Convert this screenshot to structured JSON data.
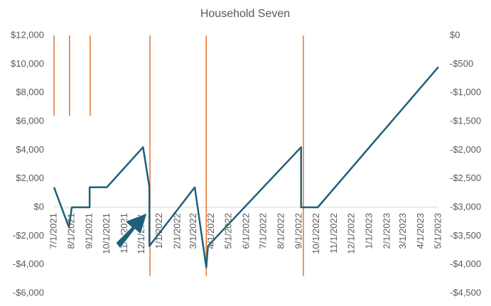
{
  "chart_data": {
    "type": "line",
    "title": "Household Seven",
    "xlim": [
      "7/1/2021",
      "5/1/2023"
    ],
    "xticks": [
      "7/1/2021",
      "8/1/2021",
      "9/1/2021",
      "10/1/2021",
      "11/1/2021",
      "12/1/2021",
      "1/1/2022",
      "2/1/2022",
      "3/1/2022",
      "4/1/2022",
      "5/1/2022",
      "6/1/2022",
      "7/1/2022",
      "8/1/2022",
      "9/1/2022",
      "10/1/2022",
      "11/1/2022",
      "12/1/2022",
      "1/1/2023",
      "2/1/2023",
      "3/1/2023",
      "4/1/2023",
      "5/1/2023"
    ],
    "ylim": [
      -6000,
      12000
    ],
    "yticks": [
      {
        "value": 12000,
        "label": "$12,000"
      },
      {
        "value": 10000,
        "label": "$10,000"
      },
      {
        "value": 8000,
        "label": "$8,000"
      },
      {
        "value": 6000,
        "label": "$6,000"
      },
      {
        "value": 4000,
        "label": "$4,000"
      },
      {
        "value": 2000,
        "label": "$2,000"
      },
      {
        "value": 0,
        "label": "$0"
      },
      {
        "value": -2000,
        "label": "-$2,000"
      },
      {
        "value": -4000,
        "label": "-$4,000"
      },
      {
        "value": -6000,
        "label": "-$6,000"
      }
    ],
    "y2lim": [
      -4500,
      0
    ],
    "y2ticks": [
      {
        "value": 0,
        "label": "$0"
      },
      {
        "value": -500,
        "label": "-$500"
      },
      {
        "value": -1000,
        "label": "-$1,000"
      },
      {
        "value": -1500,
        "label": "-$1,500"
      },
      {
        "value": -2000,
        "label": "-$2,000"
      },
      {
        "value": -2500,
        "label": "-$2,500"
      },
      {
        "value": -3000,
        "label": "-$3,000"
      },
      {
        "value": -3500,
        "label": "-$3,500"
      },
      {
        "value": -4000,
        "label": "-$4,000"
      },
      {
        "value": -4500,
        "label": "-$4,500"
      }
    ],
    "series": [
      {
        "type": "line",
        "color": "#1f6079",
        "x": [
          "7/1/2021",
          "7/27/2021",
          "8/1/2021",
          "9/1/2021",
          "9/1/2021",
          "10/1/2021",
          "12/3/2021",
          "12/14/2021",
          "12/14/2021",
          "3/3/2022",
          "3/23/2022",
          "3/26/2022",
          "9/4/2022",
          "9/4/2022",
          "10/3/2022",
          "5/1/2023"
        ],
        "values": [
          1400,
          -1400,
          0,
          0,
          1400,
          1400,
          4200,
          1400,
          -2700,
          1400,
          -4200,
          -2700,
          4200,
          0,
          0,
          9800
        ]
      },
      {
        "type": "bar",
        "axis": "y2",
        "color": "#e0752d",
        "x": [
          "7/1/2021",
          "7/28/2021",
          "9/2/2021",
          "12/15/2021",
          "3/23/2022",
          "9/8/2022"
        ],
        "values": [
          -1400,
          -1400,
          -1400,
          -4200,
          -4200,
          -4200
        ]
      }
    ]
  }
}
